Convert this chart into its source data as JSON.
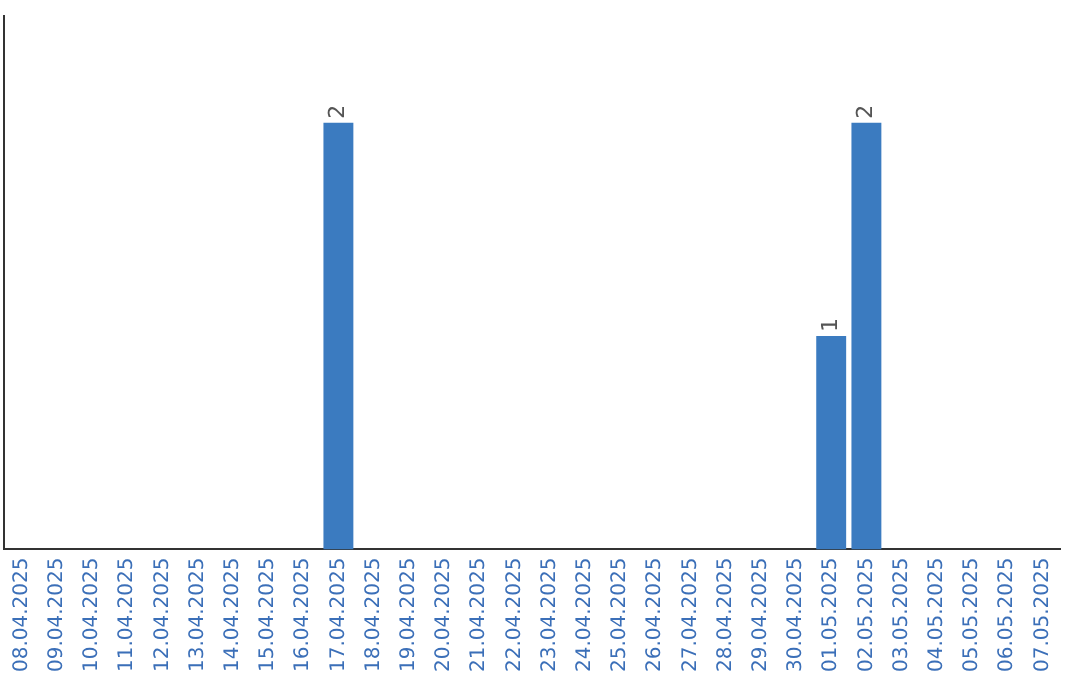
{
  "chart_data": {
    "type": "bar",
    "categories": [
      "08.04.2025",
      "09.04.2025",
      "10.04.2025",
      "11.04.2025",
      "12.04.2025",
      "13.04.2025",
      "14.04.2025",
      "15.04.2025",
      "16.04.2025",
      "17.04.2025",
      "18.04.2025",
      "19.04.2025",
      "20.04.2025",
      "21.04.2025",
      "22.04.2025",
      "23.04.2025",
      "24.04.2025",
      "25.04.2025",
      "26.04.2025",
      "27.04.2025",
      "28.04.2025",
      "29.04.2025",
      "30.04.2025",
      "01.05.2025",
      "02.05.2025",
      "03.05.2025",
      "04.05.2025",
      "05.05.2025",
      "06.05.2025",
      "07.05.2025"
    ],
    "values": [
      0,
      0,
      0,
      0,
      0,
      0,
      0,
      0,
      0,
      2,
      0,
      0,
      0,
      0,
      0,
      0,
      0,
      0,
      0,
      0,
      0,
      0,
      0,
      1,
      2,
      0,
      0,
      0,
      0,
      0
    ],
    "value_labels": [
      null,
      null,
      null,
      null,
      null,
      null,
      null,
      null,
      null,
      "2",
      null,
      null,
      null,
      null,
      null,
      null,
      null,
      null,
      null,
      null,
      null,
      null,
      null,
      "1",
      "2",
      null,
      null,
      null,
      null,
      null
    ],
    "color": "#3b7bc0"
  }
}
